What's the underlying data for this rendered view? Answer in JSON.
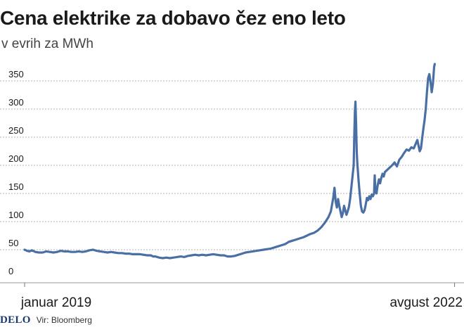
{
  "header": {
    "title": "Cena elektrike za dobavo čez eno leto",
    "subtitle": "v evrih za MWh"
  },
  "footer": {
    "logo": "DELO",
    "source": "Vir: Bloomberg"
  },
  "colors": {
    "line": "#4a6fa5",
    "grid": "#b5b5b5",
    "text": "#1a1a1a"
  },
  "chart_data": {
    "type": "line",
    "title": "Cena elektrike za dobavo čez eno leto",
    "subtitle": "v evrih za MWh",
    "xlabel": "",
    "ylabel": "",
    "ylim": [
      0,
      380
    ],
    "xlim": [
      0,
      3.6
    ],
    "x_unit": "years since January 2019",
    "yticks": [
      0,
      50,
      100,
      150,
      200,
      250,
      300,
      350
    ],
    "xtick_labels": [
      {
        "x": 0,
        "label": "januar 2019"
      },
      {
        "x": 3.58,
        "label": "avgust 2022"
      }
    ],
    "grid": true,
    "legend": "none",
    "series": [
      {
        "name": "Cena elektrike (EUR/MWh)",
        "points": [
          [
            0.0,
            50
          ],
          [
            0.02,
            48
          ],
          [
            0.04,
            47
          ],
          [
            0.06,
            49
          ],
          [
            0.09,
            46
          ],
          [
            0.12,
            45
          ],
          [
            0.15,
            45
          ],
          [
            0.18,
            47
          ],
          [
            0.21,
            46
          ],
          [
            0.24,
            45
          ],
          [
            0.27,
            46
          ],
          [
            0.3,
            48
          ],
          [
            0.33,
            47
          ],
          [
            0.36,
            47
          ],
          [
            0.39,
            46
          ],
          [
            0.42,
            46
          ],
          [
            0.45,
            47
          ],
          [
            0.48,
            46
          ],
          [
            0.51,
            47
          ],
          [
            0.54,
            49
          ],
          [
            0.57,
            50
          ],
          [
            0.6,
            48
          ],
          [
            0.63,
            47
          ],
          [
            0.66,
            46
          ],
          [
            0.69,
            45
          ],
          [
            0.72,
            46
          ],
          [
            0.75,
            45
          ],
          [
            0.78,
            44
          ],
          [
            0.81,
            44
          ],
          [
            0.84,
            43
          ],
          [
            0.87,
            43
          ],
          [
            0.9,
            42
          ],
          [
            0.93,
            42
          ],
          [
            0.96,
            42
          ],
          [
            0.99,
            41
          ],
          [
            1.02,
            40
          ],
          [
            1.05,
            40
          ],
          [
            1.07,
            38
          ],
          [
            1.09,
            38
          ],
          [
            1.12,
            36
          ],
          [
            1.15,
            35
          ],
          [
            1.18,
            36
          ],
          [
            1.21,
            35
          ],
          [
            1.24,
            36
          ],
          [
            1.27,
            37
          ],
          [
            1.3,
            38
          ],
          [
            1.33,
            37
          ],
          [
            1.36,
            39
          ],
          [
            1.39,
            40
          ],
          [
            1.42,
            41
          ],
          [
            1.45,
            40
          ],
          [
            1.48,
            41
          ],
          [
            1.51,
            40
          ],
          [
            1.54,
            41
          ],
          [
            1.57,
            42
          ],
          [
            1.6,
            41
          ],
          [
            1.63,
            40
          ],
          [
            1.66,
            40
          ],
          [
            1.69,
            38
          ],
          [
            1.72,
            38
          ],
          [
            1.75,
            39
          ],
          [
            1.78,
            41
          ],
          [
            1.81,
            43
          ],
          [
            1.84,
            45
          ],
          [
            1.87,
            46
          ],
          [
            1.9,
            47
          ],
          [
            1.93,
            48
          ],
          [
            1.96,
            49
          ],
          [
            1.99,
            50
          ],
          [
            2.02,
            51
          ],
          [
            2.05,
            52
          ],
          [
            2.08,
            54
          ],
          [
            2.11,
            56
          ],
          [
            2.14,
            58
          ],
          [
            2.17,
            60
          ],
          [
            2.2,
            64
          ],
          [
            2.23,
            66
          ],
          [
            2.26,
            68
          ],
          [
            2.29,
            70
          ],
          [
            2.32,
            72
          ],
          [
            2.35,
            75
          ],
          [
            2.38,
            78
          ],
          [
            2.41,
            80
          ],
          [
            2.44,
            84
          ],
          [
            2.47,
            90
          ],
          [
            2.5,
            98
          ],
          [
            2.53,
            108
          ],
          [
            2.55,
            118
          ],
          [
            2.56,
            130
          ],
          [
            2.57,
            142
          ],
          [
            2.58,
            160
          ],
          [
            2.59,
            135
          ],
          [
            2.6,
            125
          ],
          [
            2.61,
            140
          ],
          [
            2.62,
            128
          ],
          [
            2.63,
            118
          ],
          [
            2.64,
            108
          ],
          [
            2.65,
            115
          ],
          [
            2.66,
            128
          ],
          [
            2.67,
            120
          ],
          [
            2.68,
            112
          ],
          [
            2.69,
            118
          ],
          [
            2.7,
            126
          ],
          [
            2.71,
            140
          ],
          [
            2.72,
            160
          ],
          [
            2.73,
            180
          ],
          [
            2.74,
            200
          ],
          [
            2.745,
            250
          ],
          [
            2.75,
            295
          ],
          [
            2.755,
            313
          ],
          [
            2.76,
            275
          ],
          [
            2.765,
            225
          ],
          [
            2.77,
            205
          ],
          [
            2.78,
            175
          ],
          [
            2.79,
            150
          ],
          [
            2.8,
            128
          ],
          [
            2.81,
            118
          ],
          [
            2.82,
            116
          ],
          [
            2.83,
            120
          ],
          [
            2.84,
            130
          ],
          [
            2.85,
            142
          ],
          [
            2.86,
            138
          ],
          [
            2.87,
            145
          ],
          [
            2.88,
            140
          ],
          [
            2.89,
            148
          ],
          [
            2.9,
            145
          ],
          [
            2.91,
            150
          ],
          [
            2.915,
            182
          ],
          [
            2.92,
            160
          ],
          [
            2.93,
            150
          ],
          [
            2.94,
            165
          ],
          [
            2.95,
            175
          ],
          [
            2.96,
            168
          ],
          [
            2.97,
            178
          ],
          [
            2.98,
            185
          ],
          [
            2.99,
            180
          ],
          [
            3.0,
            188
          ],
          [
            3.02,
            192
          ],
          [
            3.04,
            196
          ],
          [
            3.06,
            200
          ],
          [
            3.08,
            205
          ],
          [
            3.1,
            198
          ],
          [
            3.12,
            210
          ],
          [
            3.14,
            215
          ],
          [
            3.16,
            222
          ],
          [
            3.18,
            228
          ],
          [
            3.2,
            226
          ],
          [
            3.22,
            232
          ],
          [
            3.24,
            230
          ],
          [
            3.26,
            240
          ],
          [
            3.27,
            245
          ],
          [
            3.28,
            235
          ],
          [
            3.29,
            225
          ],
          [
            3.3,
            230
          ],
          [
            3.31,
            248
          ],
          [
            3.32,
            265
          ],
          [
            3.33,
            280
          ],
          [
            3.34,
            300
          ],
          [
            3.35,
            330
          ],
          [
            3.36,
            355
          ],
          [
            3.37,
            362
          ],
          [
            3.38,
            348
          ],
          [
            3.39,
            330
          ],
          [
            3.4,
            345
          ],
          [
            3.41,
            375
          ],
          [
            3.415,
            380
          ]
        ]
      }
    ]
  }
}
